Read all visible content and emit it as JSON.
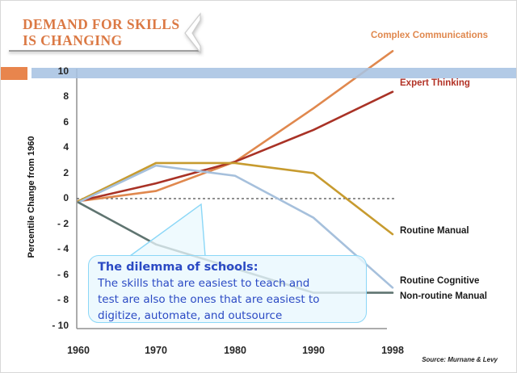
{
  "slide": {
    "title_line1": "DEMAND FOR SKILLS",
    "title_line2": "IS CHANGING",
    "source": "Source: Murnane & Levy",
    "accent_orange": "#E8854D",
    "bar_blue": "#A7C3E3",
    "title_color": "#DB7944"
  },
  "icons": {
    "ribbon_chevron": "❮"
  },
  "callout": {
    "title": "The dilemma of schools:",
    "lines": [
      "The skills that are easiest to teach and",
      "test are also the ones that are easiest to",
      "digitize, automate, and outsource"
    ],
    "text_color": "#2B4AC4",
    "fill": "#E9F8FE",
    "border": "#8BD7F7"
  },
  "chart_data": {
    "type": "line",
    "title": "",
    "xlabel": "",
    "ylabel": "Percentile Change from 1960",
    "categories": [
      "1960",
      "1970",
      "1980",
      "1990",
      "1998"
    ],
    "ylim": [
      -10,
      10
    ],
    "ytick_step": 2,
    "grid": false,
    "zero_line": "dashed",
    "legend_position": "end-of-line labels",
    "series": [
      {
        "name": "Complex Communications",
        "values": [
          -0.2,
          0.6,
          2.9,
          7.1,
          11.6
        ],
        "color": "#E0884E",
        "label_color": "#E0884E"
      },
      {
        "name": "Expert Thinking",
        "values": [
          -0.2,
          1.2,
          2.9,
          5.4,
          8.4
        ],
        "color": "#A93226",
        "label_color": "#B23226"
      },
      {
        "name": "Routine Manual",
        "values": [
          -0.2,
          2.8,
          2.8,
          2.0,
          -2.8
        ],
        "color": "#C79B2F",
        "label_color": "#1A1A1A"
      },
      {
        "name": "Routine Cognitive",
        "values": [
          -0.3,
          2.6,
          1.8,
          -1.5,
          -7.0
        ],
        "color": "#A6C0DC",
        "label_color": "#1A1A1A"
      },
      {
        "name": "Non-routine Manual",
        "values": [
          -0.3,
          -3.6,
          -5.5,
          -7.4,
          -7.4
        ],
        "color": "#5F7470",
        "label_color": "#1A1A1A"
      }
    ]
  }
}
